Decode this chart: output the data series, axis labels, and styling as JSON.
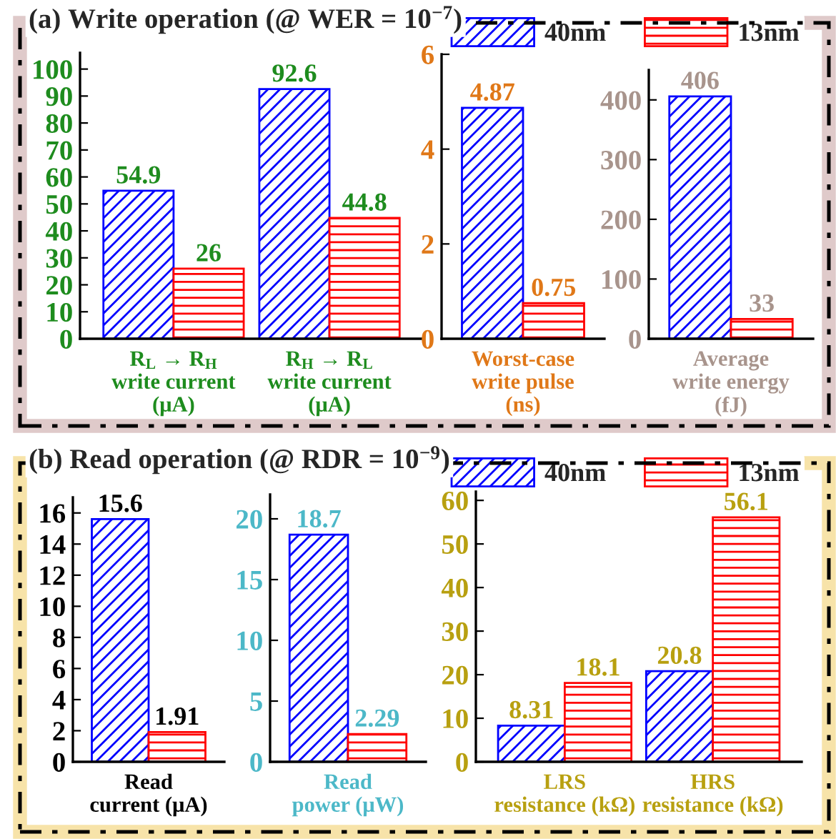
{
  "chart_data": [
    {
      "type": "bar",
      "title": "(a) Write operation (@ WER = 10$^{−7}$)",
      "categories": [
        "R$_{L}$ → R$_{H}$\nwrite current\n(μA)",
        "R$_{H}$ → R$_{L}$\nwrite current\n(μA)"
      ],
      "series": [
        {
          "name": "40nm",
          "color": "#0000ff",
          "values": [
            54.9,
            92.6
          ]
        },
        {
          "name": "13nm",
          "color": "#ff0000",
          "values": [
            26,
            44.8
          ]
        }
      ],
      "ylim": [
        0,
        106
      ],
      "yticks": [
        0,
        10,
        20,
        30,
        40,
        50,
        60,
        70,
        80,
        90,
        100
      ],
      "data_labels": true,
      "legend": "top right",
      "grid": false
    },
    {
      "type": "bar",
      "categories": [
        "Worst-case\nwrite pulse\n(ns)"
      ],
      "series": [
        {
          "color": "#0000ff",
          "values": [
            4.87
          ]
        },
        {
          "color": "#ff0000",
          "values": [
            0.75
          ]
        }
      ],
      "ylim": [
        0,
        6
      ],
      "yticks": [
        0,
        2,
        4,
        6
      ],
      "data_labels": true,
      "grid": false
    },
    {
      "type": "bar",
      "categories": [
        "Average\nwrite energy\n(fJ)"
      ],
      "series": [
        {
          "color": "#0000ff",
          "values": [
            406
          ]
        },
        {
          "color": "#ff0000",
          "values": [
            33
          ]
        }
      ],
      "ylim": [
        0,
        450
      ],
      "yticks": [
        0,
        100,
        200,
        300,
        400
      ],
      "data_labels": true,
      "grid": false
    },
    {
      "type": "bar",
      "title": "(b) Read operation (@ RDR = 10$^{−9}$)",
      "categories": [
        "Read\ncurrent (μA)"
      ],
      "series": [
        {
          "name": "40nm",
          "color": "#0000ff",
          "values": [
            15.6
          ]
        },
        {
          "name": "13nm",
          "color": "#ff0000",
          "values": [
            1.91
          ]
        }
      ],
      "ylim": [
        0,
        17
      ],
      "yticks": [
        0,
        2,
        4,
        6,
        8,
        10,
        12,
        14,
        16
      ],
      "data_labels": true,
      "legend": "top right",
      "grid": false
    },
    {
      "type": "bar",
      "categories": [
        "Read\npower (μW)"
      ],
      "series": [
        {
          "color": "#0000ff",
          "values": [
            18.7
          ]
        },
        {
          "color": "#ff0000",
          "values": [
            2.29
          ]
        }
      ],
      "ylim": [
        0,
        22
      ],
      "yticks": [
        0,
        5,
        10,
        15,
        20
      ],
      "data_labels": true,
      "grid": false
    },
    {
      "type": "bar",
      "categories": [
        "LRS\nresistance (kΩ)",
        "HRS\nresistance (kΩ)"
      ],
      "series": [
        {
          "color": "#0000ff",
          "values": [
            8.31,
            20.8
          ]
        },
        {
          "color": "#ff0000",
          "values": [
            18.1,
            56.1
          ]
        }
      ],
      "ylim": [
        0,
        62
      ],
      "yticks": [
        0,
        10,
        20,
        30,
        40,
        50,
        60
      ],
      "data_labels": true,
      "grid": false
    }
  ]
}
